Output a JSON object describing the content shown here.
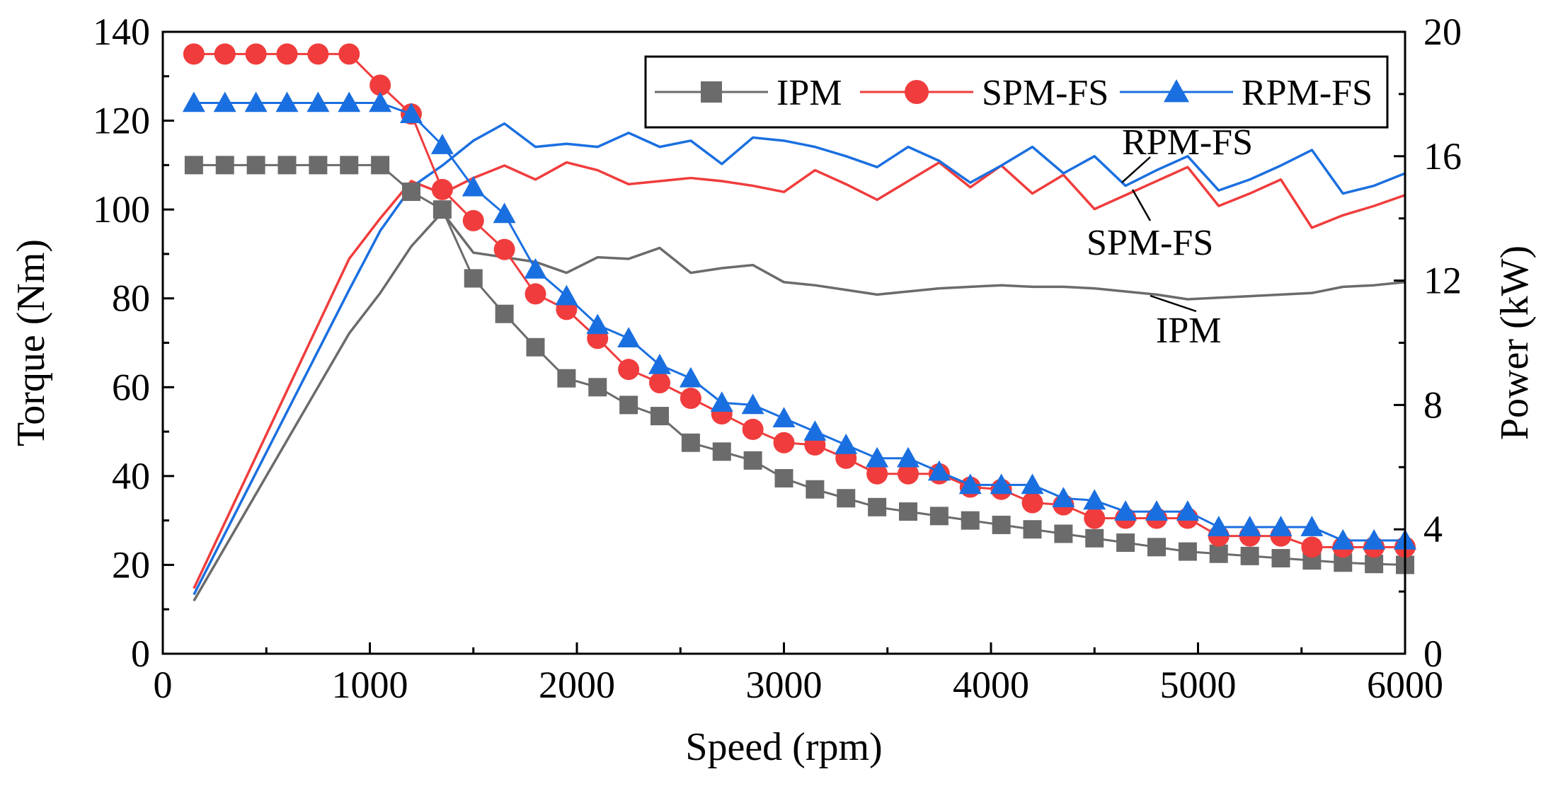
{
  "chart_data": {
    "type": "line",
    "xlabel": "Speed (rpm)",
    "ylabel": "Torque (Nm)",
    "y2label": "Power (kW)",
    "xlim": [
      0,
      6000
    ],
    "ylim": [
      0,
      140
    ],
    "y2lim": [
      0,
      20
    ],
    "xticks": [
      0,
      1000,
      2000,
      3000,
      4000,
      5000,
      6000
    ],
    "yticks": [
      0,
      20,
      40,
      60,
      80,
      100,
      120,
      140
    ],
    "y2ticks": [
      0,
      4,
      8,
      12,
      16,
      20
    ],
    "legend_position": "top-right",
    "colors": {
      "IPM": "#6b6b6b",
      "SPM-FS": "#f03c3c",
      "RPM-FS": "#1a6fe0"
    },
    "torque_x": [
      150,
      300,
      450,
      600,
      750,
      900,
      1050,
      1200,
      1350,
      1500,
      1650,
      1800,
      1950,
      2100,
      2250,
      2400,
      2550,
      2700,
      2850,
      3000,
      3150,
      3300,
      3450,
      3600,
      3750,
      3900,
      4050,
      4200,
      4350,
      4500,
      4650,
      4800,
      4950,
      5100,
      5250,
      5400,
      5550,
      5700,
      5850,
      6000
    ],
    "torque_series": [
      {
        "name": "IPM",
        "marker": "square",
        "values": [
          110,
          110,
          110,
          110,
          110,
          110,
          110,
          104,
          100,
          84.5,
          76.5,
          69,
          62,
          60,
          56,
          53.5,
          47.5,
          45.5,
          43.5,
          39.5,
          37,
          35,
          33,
          32,
          31,
          30,
          29,
          28,
          27,
          26,
          25,
          24,
          23,
          22.5,
          22,
          21.5,
          21,
          20.5,
          20.2,
          20
        ]
      },
      {
        "name": "SPM-FS",
        "marker": "circle",
        "values": [
          135,
          135,
          135,
          135,
          135,
          135,
          128,
          121.5,
          104.5,
          97.5,
          91,
          81,
          77.5,
          71,
          64,
          61,
          57.5,
          54,
          50.5,
          47.5,
          47,
          44,
          40.5,
          40.5,
          40.5,
          37.5,
          37,
          34,
          33.5,
          30.5,
          30.5,
          30.5,
          30.5,
          26.5,
          26.5,
          26.5,
          24,
          24,
          24,
          24
        ]
      },
      {
        "name": "RPM-FS",
        "marker": "triangle",
        "values": [
          124,
          124,
          124,
          124,
          124,
          124,
          124,
          121.5,
          114.5,
          105,
          99,
          86.5,
          80.5,
          74,
          71,
          65,
          62,
          56.5,
          56,
          53,
          50,
          47,
          44,
          44,
          41,
          38,
          38,
          38,
          35,
          34.5,
          32,
          32,
          32,
          28.5,
          28.5,
          28.5,
          28.5,
          25.5,
          25.5,
          25.5
        ]
      }
    ],
    "power_x": [
      150,
      900,
      1050,
      1200,
      1350,
      1500,
      1650,
      1800,
      1950,
      2100,
      2250,
      2400,
      2550,
      2700,
      2850,
      3000,
      3150,
      3300,
      3450,
      3600,
      3750,
      3900,
      4050,
      4200,
      4350,
      4500,
      4650,
      4800,
      4950,
      5100,
      5250,
      5400,
      5550,
      5700,
      5850,
      6000
    ],
    "power_series": [
      {
        "name": "IPM",
        "values": [
          1.7,
          10.3,
          11.6,
          13.1,
          14.2,
          12.9,
          12.75,
          12.6,
          12.25,
          12.75,
          12.7,
          13.05,
          12.25,
          12.4,
          12.5,
          11.95,
          11.85,
          11.7,
          11.55,
          11.65,
          11.75,
          11.8,
          11.85,
          11.8,
          11.8,
          11.75,
          11.65,
          11.55,
          11.4,
          11.45,
          11.5,
          11.55,
          11.6,
          11.8,
          11.85,
          11.95
        ]
      },
      {
        "name": "SPM-FS",
        "values": [
          2.1,
          12.7,
          14.0,
          15.2,
          14.8,
          15.3,
          15.7,
          15.25,
          15.8,
          15.55,
          15.1,
          15.2,
          15.3,
          15.2,
          15.05,
          14.85,
          15.55,
          15.1,
          14.6,
          15.2,
          15.8,
          15.0,
          15.7,
          14.8,
          15.4,
          14.3,
          14.75,
          15.2,
          15.65,
          14.4,
          14.8,
          15.25,
          13.7,
          14.1,
          14.4,
          14.75
        ]
      },
      {
        "name": "RPM-FS",
        "values": [
          1.9,
          11.7,
          13.6,
          15.0,
          15.7,
          16.5,
          17.05,
          16.3,
          16.4,
          16.3,
          16.75,
          16.3,
          16.5,
          15.75,
          16.6,
          16.5,
          16.3,
          16.0,
          15.65,
          16.3,
          15.85,
          15.15,
          15.7,
          16.3,
          15.45,
          16.0,
          15.05,
          15.55,
          16.0,
          14.9,
          15.25,
          15.7,
          16.2,
          14.8,
          15.05,
          15.45
        ]
      }
    ],
    "annotations": [
      "RPM-FS",
      "SPM-FS",
      "IPM"
    ]
  }
}
